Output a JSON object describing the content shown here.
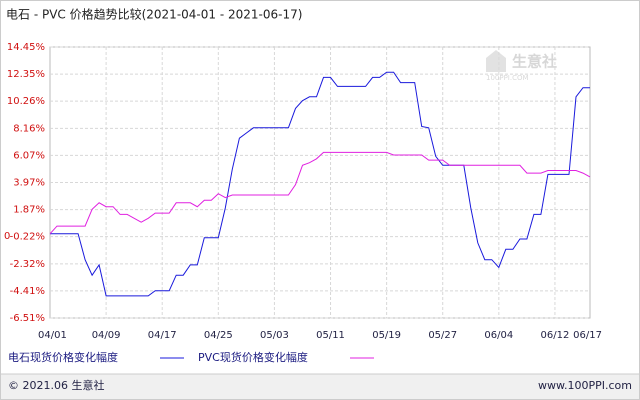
{
  "chart_data": {
    "type": "line",
    "title": "电石 - PVC 价格趋势比较(2021-04-01 - 2021-06-17)",
    "x": [
      "04/01",
      "04/02",
      "04/03",
      "04/04",
      "04/05",
      "04/06",
      "04/07",
      "04/08",
      "04/09",
      "04/10",
      "04/11",
      "04/12",
      "04/13",
      "04/14",
      "04/15",
      "04/16",
      "04/17",
      "04/18",
      "04/19",
      "04/20",
      "04/21",
      "04/22",
      "04/23",
      "04/24",
      "04/25",
      "04/26",
      "04/27",
      "04/28",
      "04/29",
      "04/30",
      "05/01",
      "05/02",
      "05/03",
      "05/04",
      "05/05",
      "05/06",
      "05/07",
      "05/08",
      "05/09",
      "05/10",
      "05/11",
      "05/12",
      "05/13",
      "05/14",
      "05/15",
      "05/16",
      "05/17",
      "05/18",
      "05/19",
      "05/20",
      "05/21",
      "05/22",
      "05/23",
      "05/24",
      "05/25",
      "05/26",
      "05/27",
      "05/28",
      "05/29",
      "05/30",
      "05/31",
      "06/01",
      "06/02",
      "06/03",
      "06/04",
      "06/05",
      "06/06",
      "06/07",
      "06/08",
      "06/09",
      "06/10",
      "06/11",
      "06/12",
      "06/13",
      "06/14",
      "06/15",
      "06/16",
      "06/17"
    ],
    "xticks": [
      "04/01",
      "04/09",
      "04/17",
      "04/25",
      "05/03",
      "05/11",
      "05/19",
      "05/27",
      "06/04",
      "06/12",
      "06/17"
    ],
    "series": [
      {
        "name": "电石现货价格变化幅度",
        "color": "#1a1adc",
        "values": [
          0,
          0,
          0,
          0,
          0,
          -2.0,
          -3.2,
          -2.4,
          -4.8,
          -4.8,
          -4.8,
          -4.8,
          -4.8,
          -4.8,
          -4.8,
          -4.4,
          -4.4,
          -4.4,
          -3.2,
          -3.2,
          -2.4,
          -2.4,
          -0.3,
          -0.3,
          -0.3,
          2.0,
          5.0,
          7.4,
          7.8,
          8.2,
          8.2,
          8.2,
          8.2,
          8.2,
          8.2,
          9.7,
          10.3,
          10.6,
          10.6,
          12.1,
          12.1,
          11.4,
          11.4,
          11.4,
          11.4,
          11.4,
          12.1,
          12.1,
          12.5,
          12.5,
          11.7,
          11.7,
          11.7,
          8.3,
          8.2,
          6.0,
          5.3,
          5.3,
          5.3,
          5.3,
          2.0,
          -0.7,
          -2.0,
          -2.0,
          -2.6,
          -1.2,
          -1.2,
          -0.4,
          -0.4,
          1.5,
          1.5,
          4.6,
          4.6,
          4.6,
          4.6,
          10.6,
          11.3,
          11.3
        ]
      },
      {
        "name": "PVC现货价格变化幅度",
        "color": "#e020e0",
        "values": [
          0,
          0.6,
          0.6,
          0.6,
          0.6,
          0.6,
          1.9,
          2.4,
          2.1,
          2.1,
          1.5,
          1.5,
          1.2,
          0.9,
          1.2,
          1.6,
          1.6,
          1.6,
          2.4,
          2.4,
          2.4,
          2.1,
          2.6,
          2.6,
          3.1,
          2.8,
          3.0,
          3.0,
          3.0,
          3.0,
          3.0,
          3.0,
          3.0,
          3.0,
          3.0,
          3.8,
          5.3,
          5.5,
          5.8,
          6.3,
          6.3,
          6.3,
          6.3,
          6.3,
          6.3,
          6.3,
          6.3,
          6.3,
          6.3,
          6.1,
          6.1,
          6.1,
          6.1,
          6.1,
          5.7,
          5.7,
          5.7,
          5.3,
          5.3,
          5.3,
          5.3,
          5.3,
          5.3,
          5.3,
          5.3,
          5.3,
          5.3,
          5.3,
          4.7,
          4.7,
          4.7,
          4.9,
          4.9,
          4.9,
          4.9,
          4.9,
          4.7,
          4.4
        ]
      }
    ],
    "ylim": [
      -6.51,
      14.45
    ],
    "yticks": [
      {
        "value": 14.45,
        "label": "14.45%"
      },
      {
        "value": 12.35,
        "label": "12.35%"
      },
      {
        "value": 10.26,
        "label": "10.26%"
      },
      {
        "value": 8.16,
        "label": "8.16%"
      },
      {
        "value": 6.07,
        "label": "6.07%"
      },
      {
        "value": 3.97,
        "label": "3.97%"
      },
      {
        "value": 1.87,
        "label": "1.87%"
      },
      {
        "value": -0.22,
        "label": "-0.22%"
      },
      0,
      {
        "value": -2.32,
        "label": "-2.32%"
      },
      {
        "value": -4.41,
        "label": "-4.41%"
      },
      {
        "value": -6.51,
        "label": "-6.51%"
      }
    ],
    "grid": true,
    "watermark": "生意社",
    "watermark_sub": "100PPI.COM",
    "footer_left": "© 2021.06 生意社",
    "footer_right": "www.100PPI.com"
  }
}
